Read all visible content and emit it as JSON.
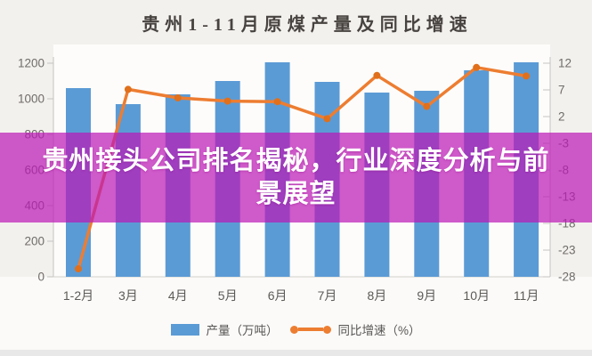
{
  "overlay": {
    "text": "贵州接头公司排名揭秘，行业深度分析与前\n景展望",
    "bg_color": "rgba(188,24,182,0.71)",
    "text_color": "#FFFFFF"
  },
  "chart_data": {
    "type": "combo",
    "title": "贵州1-11月原煤产量及同比增速",
    "categories": [
      "1-2月",
      "3月",
      "4月",
      "5月",
      "6月",
      "7月",
      "8月",
      "9月",
      "10月",
      "11月"
    ],
    "series": [
      {
        "name": "产量（万吨）",
        "type": "bar",
        "axis": "left",
        "color": "#5B9BD5",
        "values": [
          1060,
          970,
          1025,
          1100,
          1205,
          1095,
          1035,
          1045,
          1160,
          1205
        ]
      },
      {
        "name": "同比增速（%）",
        "type": "line",
        "axis": "right",
        "color": "#ED7D31",
        "marker_color": "#E0701C",
        "values": [
          -26.5,
          7.1,
          5.5,
          4.9,
          4.8,
          1.6,
          9.7,
          3.9,
          11.2,
          9.6
        ]
      }
    ],
    "left_axis": {
      "range": [
        0,
        1200
      ],
      "ticks": [
        0,
        200,
        400,
        600,
        800,
        1000,
        1200
      ]
    },
    "right_axis": {
      "range": [
        -28,
        12
      ],
      "ticks": [
        12,
        7,
        2,
        -3,
        -8,
        -13,
        -18,
        -23,
        -28
      ]
    },
    "grid": false,
    "legend_position": "bottom"
  }
}
